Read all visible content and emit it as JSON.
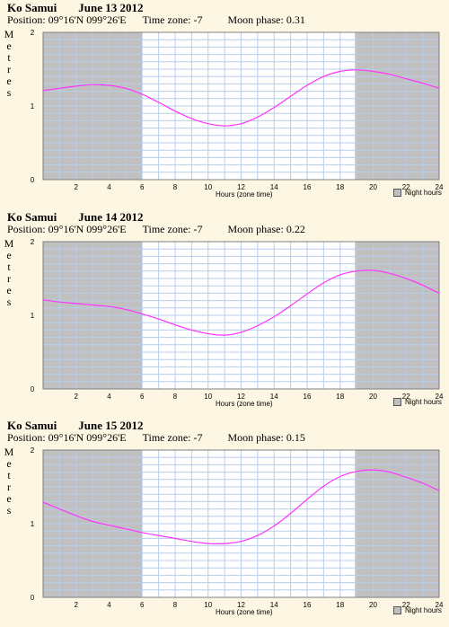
{
  "chart_data": [
    {
      "type": "line",
      "title": "Ko Samui",
      "date": "June 13 2012",
      "position_label": "Position: 09°16'N 099°26'E",
      "timezone_label": "Time zone: -7",
      "moon_label": "Moon phase: 0.31",
      "ylabel": "Metres",
      "xlabel": "Hours (zone time)",
      "legend_label": "Night hours",
      "xlim": [
        0,
        24
      ],
      "ylim": [
        0,
        2
      ],
      "x_ticks": [
        "2",
        "4",
        "6",
        "8",
        "10",
        "12",
        "14",
        "16",
        "18",
        "20",
        "22",
        "24"
      ],
      "y_ticks": [
        "0",
        "1",
        "2"
      ],
      "night_hours": [
        [
          0,
          6.0
        ],
        [
          18.9,
          24
        ]
      ],
      "series": [
        {
          "x": [
            0,
            1,
            2,
            3,
            4,
            5,
            6,
            7,
            8,
            9,
            10,
            11,
            12,
            13,
            14,
            15,
            16,
            17,
            18,
            19,
            20,
            21,
            22,
            23,
            24
          ],
          "y": [
            1.21,
            1.24,
            1.27,
            1.29,
            1.28,
            1.24,
            1.16,
            1.05,
            0.93,
            0.83,
            0.76,
            0.73,
            0.76,
            0.85,
            0.98,
            1.13,
            1.28,
            1.4,
            1.47,
            1.49,
            1.47,
            1.43,
            1.37,
            1.31,
            1.24
          ]
        }
      ]
    },
    {
      "type": "line",
      "title": "Ko Samui",
      "date": "June 14 2012",
      "position_label": "Position: 09°16'N 099°26'E",
      "timezone_label": "Time zone: -7",
      "moon_label": "Moon phase: 0.22",
      "ylabel": "Metres",
      "xlabel": "Hours (zone time)",
      "legend_label": "Night hours",
      "xlim": [
        0,
        24
      ],
      "ylim": [
        0,
        2
      ],
      "x_ticks": [
        "2",
        "4",
        "6",
        "8",
        "10",
        "12",
        "14",
        "16",
        "18",
        "20",
        "22",
        "24"
      ],
      "y_ticks": [
        "0",
        "1",
        "2"
      ],
      "night_hours": [
        [
          0,
          6.0
        ],
        [
          18.9,
          24
        ]
      ],
      "series": [
        {
          "x": [
            0,
            1,
            2,
            3,
            4,
            5,
            6,
            7,
            8,
            9,
            10,
            11,
            12,
            13,
            14,
            15,
            16,
            17,
            18,
            19,
            20,
            21,
            22,
            23,
            24
          ],
          "y": [
            1.21,
            1.18,
            1.16,
            1.14,
            1.12,
            1.08,
            1.02,
            0.95,
            0.87,
            0.8,
            0.75,
            0.73,
            0.77,
            0.86,
            0.98,
            1.13,
            1.29,
            1.44,
            1.55,
            1.6,
            1.61,
            1.57,
            1.5,
            1.41,
            1.3
          ]
        }
      ]
    },
    {
      "type": "line",
      "title": "Ko Samui",
      "date": "June 15 2012",
      "position_label": "Position: 09°16'N 099°26'E",
      "timezone_label": "Time zone: -7",
      "moon_label": "Moon phase: 0.15",
      "ylabel": "Metres",
      "xlabel": "Hours (zone time)",
      "legend_label": "Night hours",
      "xlim": [
        0,
        24
      ],
      "ylim": [
        0,
        2
      ],
      "x_ticks": [
        "2",
        "4",
        "6",
        "8",
        "10",
        "12",
        "14",
        "16",
        "18",
        "20",
        "22",
        "24"
      ],
      "y_ticks": [
        "0",
        "1",
        "2"
      ],
      "night_hours": [
        [
          0,
          6.0
        ],
        [
          18.9,
          24
        ]
      ],
      "series": [
        {
          "x": [
            0,
            1,
            2,
            3,
            4,
            5,
            6,
            7,
            8,
            9,
            10,
            11,
            12,
            13,
            14,
            15,
            16,
            17,
            18,
            19,
            20,
            21,
            22,
            23,
            24
          ],
          "y": [
            1.29,
            1.2,
            1.11,
            1.03,
            0.98,
            0.93,
            0.88,
            0.84,
            0.8,
            0.76,
            0.73,
            0.73,
            0.76,
            0.84,
            0.97,
            1.14,
            1.33,
            1.51,
            1.64,
            1.71,
            1.73,
            1.7,
            1.63,
            1.55,
            1.45
          ]
        }
      ]
    }
  ]
}
